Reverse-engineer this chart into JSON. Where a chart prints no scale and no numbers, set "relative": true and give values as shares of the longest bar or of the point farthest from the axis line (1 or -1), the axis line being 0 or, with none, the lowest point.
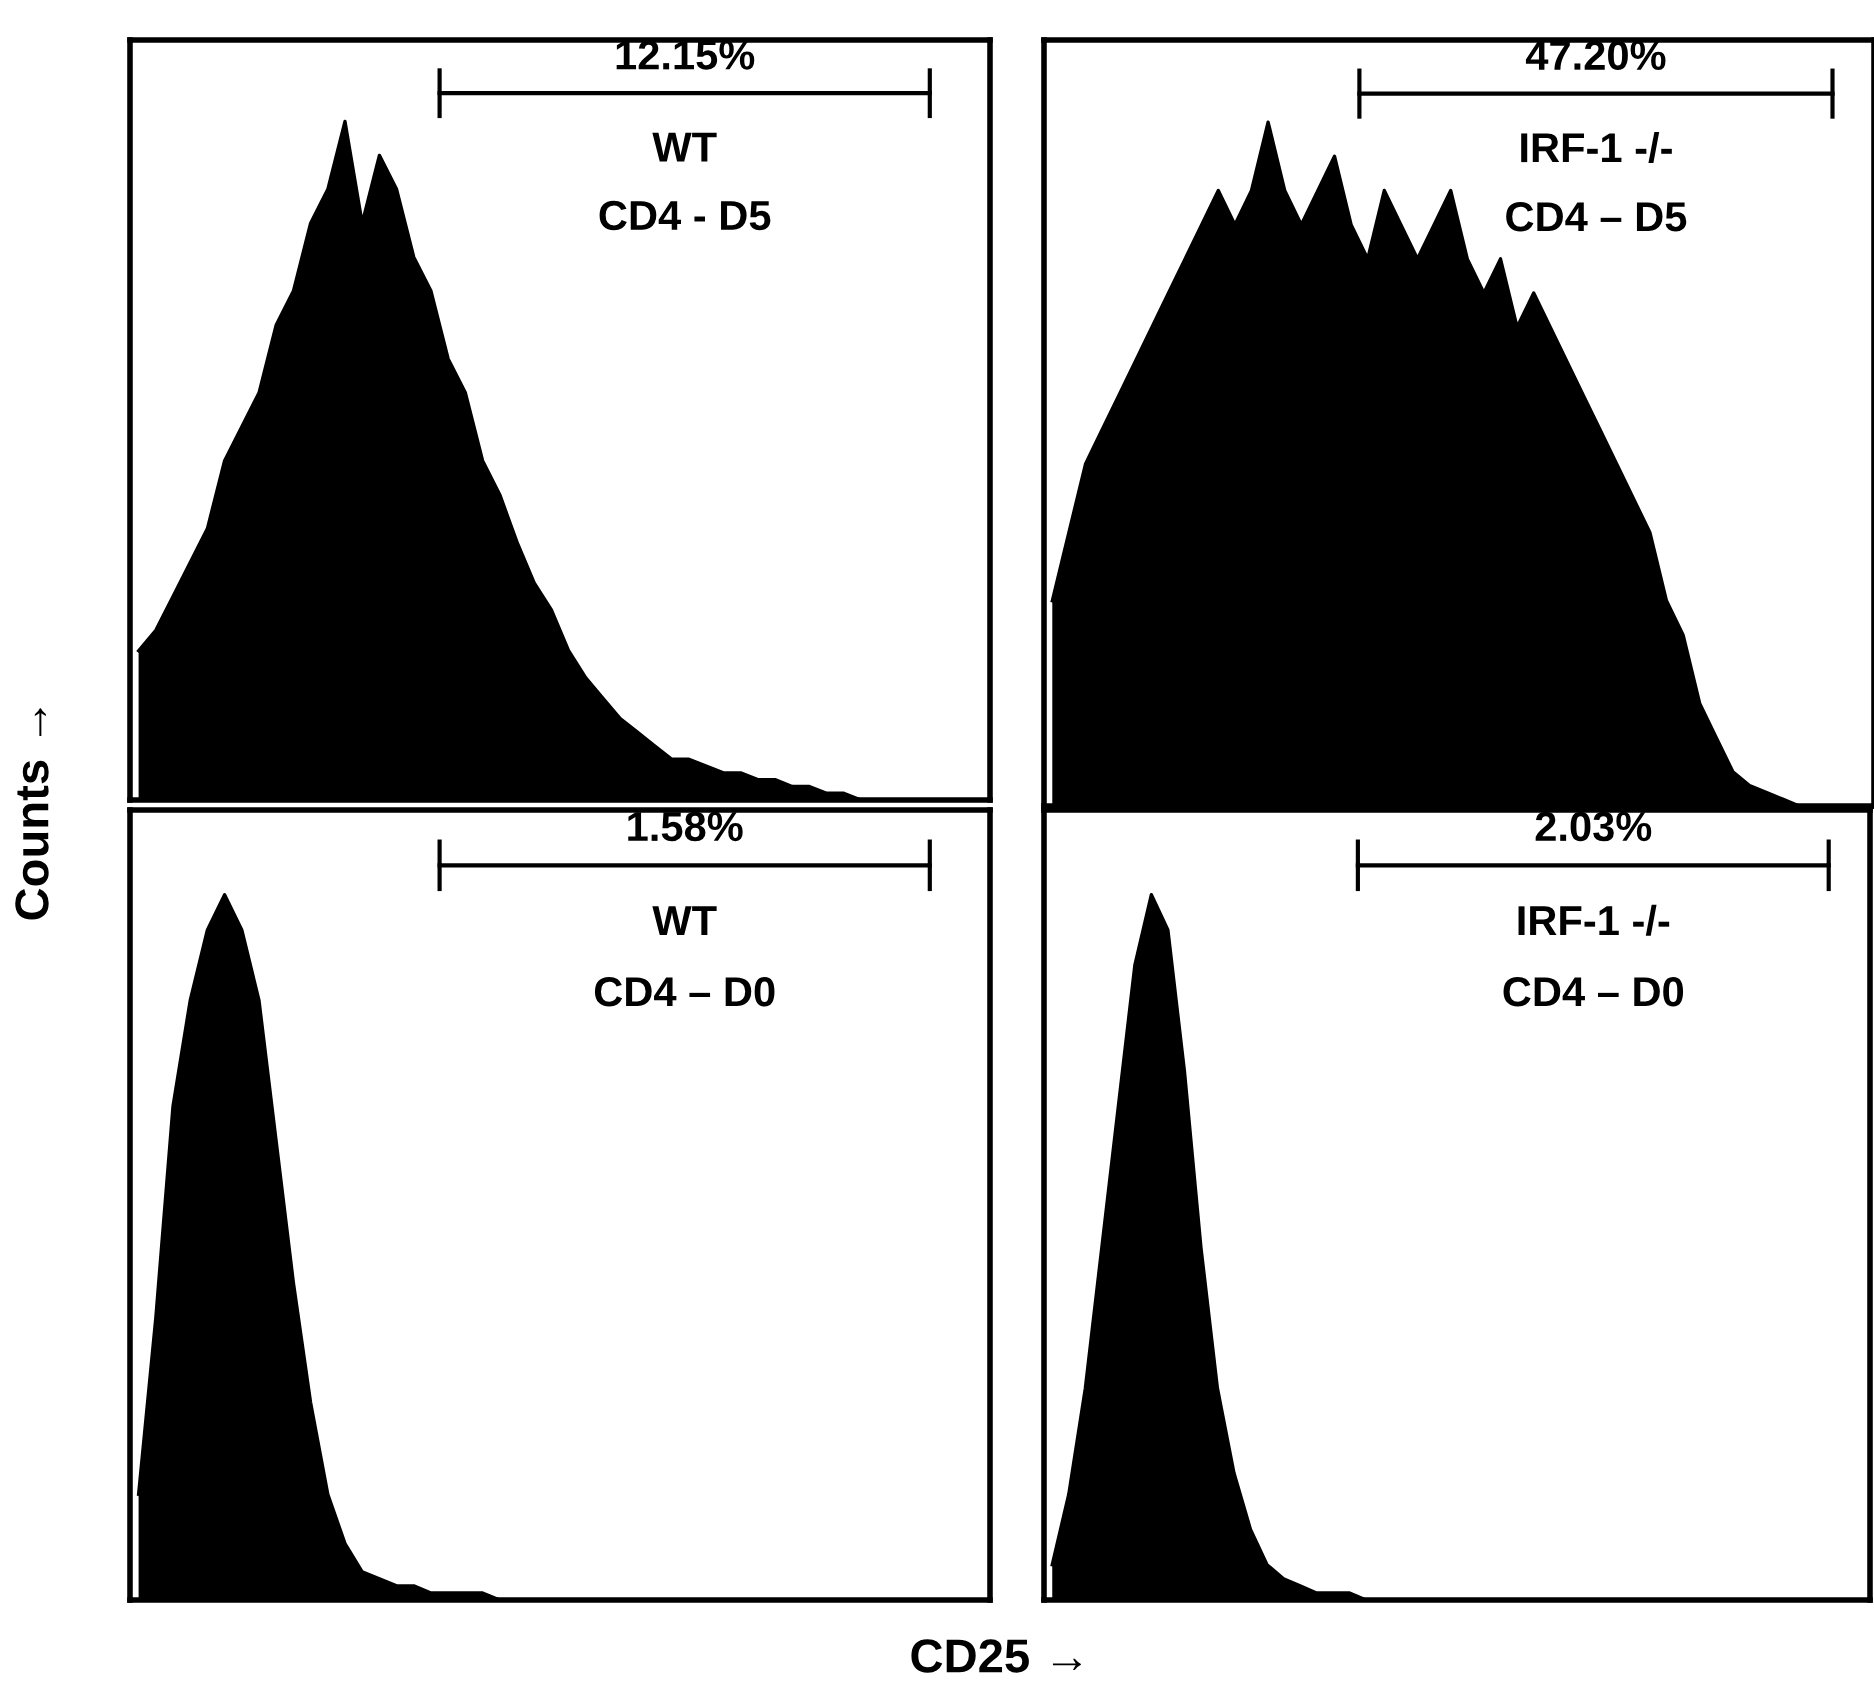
{
  "chart_data": [
    {
      "type": "area",
      "relative": true,
      "ylabel": "Counts →",
      "color": "#000000",
      "annotations": [
        "12.15%",
        "WT",
        "CD4 - D5"
      ],
      "categories": [
        null,
        null,
        null,
        null,
        null,
        null,
        null,
        null,
        null,
        null,
        null,
        null,
        null,
        null,
        null,
        null,
        null,
        null,
        null,
        null,
        null,
        null,
        null,
        null,
        null,
        null,
        null,
        null,
        null,
        null,
        null,
        null,
        null,
        null,
        null,
        null,
        null,
        null,
        null,
        null,
        null,
        null,
        null,
        null,
        null,
        null,
        null,
        null,
        null,
        null
      ],
      "values": [
        0.22,
        0.25,
        0.3,
        0.35,
        0.4,
        0.5,
        0.55,
        0.6,
        0.7,
        0.75,
        0.85,
        0.9,
        1.0,
        0.85,
        0.95,
        0.9,
        0.8,
        0.75,
        0.65,
        0.6,
        0.5,
        0.45,
        0.38,
        0.32,
        0.28,
        0.22,
        0.18,
        0.15,
        0.12,
        0.1,
        0.08,
        0.06,
        0.06,
        0.05,
        0.04,
        0.04,
        0.03,
        0.03,
        0.02,
        0.02,
        0.01,
        0.01,
        0,
        0,
        0,
        0,
        0,
        0,
        0,
        0
      ]
    },
    {
      "type": "area",
      "relative": true,
      "color": "#000000",
      "annotations": [
        "47.20%",
        "IRF-1 -/-",
        "CD4 – D5"
      ],
      "categories": [
        null,
        null,
        null,
        null,
        null,
        null,
        null,
        null,
        null,
        null,
        null,
        null,
        null,
        null,
        null,
        null,
        null,
        null,
        null,
        null,
        null,
        null,
        null,
        null,
        null,
        null,
        null,
        null,
        null,
        null,
        null,
        null,
        null,
        null,
        null,
        null,
        null,
        null,
        null,
        null,
        null,
        null,
        null,
        null,
        null,
        null,
        null,
        null,
        null,
        null
      ],
      "values": [
        0.3,
        0.4,
        0.5,
        0.55,
        0.6,
        0.65,
        0.7,
        0.75,
        0.8,
        0.85,
        0.9,
        0.85,
        0.9,
        1.0,
        0.9,
        0.85,
        0.9,
        0.95,
        0.85,
        0.8,
        0.9,
        0.85,
        0.8,
        0.85,
        0.9,
        0.8,
        0.75,
        0.8,
        0.7,
        0.75,
        0.7,
        0.65,
        0.6,
        0.55,
        0.5,
        0.45,
        0.4,
        0.3,
        0.25,
        0.15,
        0.1,
        0.05,
        0.03,
        0.02,
        0.01,
        0,
        0,
        0,
        0,
        0
      ]
    },
    {
      "type": "area",
      "relative": true,
      "xlabel": "CD25 →",
      "color": "#000000",
      "annotations": [
        "1.58%",
        "WT",
        "CD4 – D0"
      ],
      "categories": [
        null,
        null,
        null,
        null,
        null,
        null,
        null,
        null,
        null,
        null,
        null,
        null,
        null,
        null,
        null,
        null,
        null,
        null,
        null,
        null,
        null,
        null,
        null,
        null,
        null,
        null,
        null,
        null,
        null,
        null,
        null,
        null,
        null,
        null,
        null,
        null,
        null,
        null,
        null,
        null,
        null,
        null,
        null,
        null,
        null,
        null,
        null,
        null,
        null,
        null
      ],
      "values": [
        0.15,
        0.4,
        0.7,
        0.85,
        0.95,
        1.0,
        0.95,
        0.85,
        0.65,
        0.45,
        0.28,
        0.15,
        0.08,
        0.04,
        0.03,
        0.02,
        0.02,
        0.01,
        0.01,
        0.01,
        0.01,
        0,
        0,
        0,
        0,
        0,
        0,
        0,
        0,
        0,
        0,
        0,
        0,
        0,
        0,
        0,
        0,
        0,
        0,
        0,
        0,
        0,
        0,
        0,
        0,
        0,
        0,
        0,
        0,
        0
      ]
    },
    {
      "type": "area",
      "relative": true,
      "color": "#000000",
      "annotations": [
        "2.03%",
        "IRF-1 -/-",
        "CD4 – D0"
      ],
      "categories": [
        null,
        null,
        null,
        null,
        null,
        null,
        null,
        null,
        null,
        null,
        null,
        null,
        null,
        null,
        null,
        null,
        null,
        null,
        null,
        null,
        null,
        null,
        null,
        null,
        null,
        null,
        null,
        null,
        null,
        null,
        null,
        null,
        null,
        null,
        null,
        null,
        null,
        null,
        null,
        null,
        null,
        null,
        null,
        null,
        null,
        null,
        null,
        null,
        null,
        null
      ],
      "values": [
        0.05,
        0.15,
        0.3,
        0.5,
        0.7,
        0.9,
        1.0,
        0.95,
        0.75,
        0.5,
        0.3,
        0.18,
        0.1,
        0.05,
        0.03,
        0.02,
        0.01,
        0.01,
        0.01,
        0,
        0,
        0,
        0,
        0,
        0,
        0,
        0,
        0,
        0,
        0,
        0,
        0,
        0,
        0,
        0,
        0,
        0,
        0,
        0,
        0,
        0,
        0,
        0,
        0,
        0,
        0,
        0,
        0,
        0,
        0
      ]
    }
  ]
}
